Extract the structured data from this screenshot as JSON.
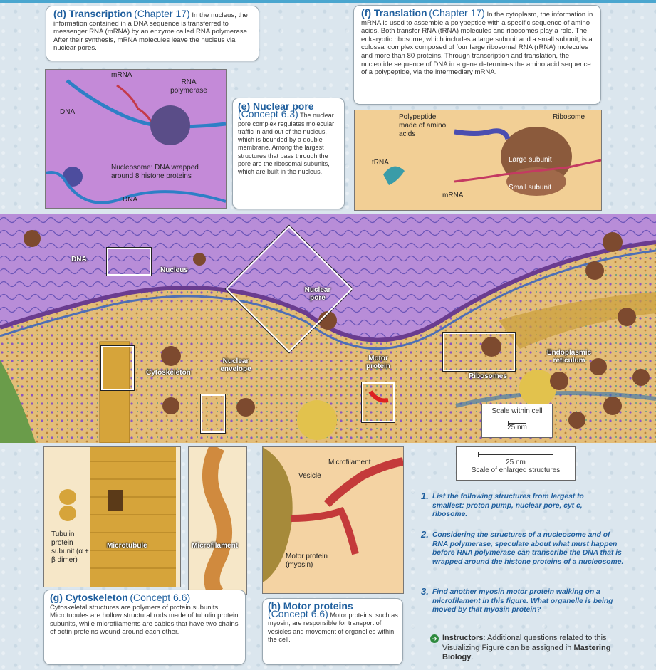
{
  "transcription": {
    "title": "(d) Transcription",
    "ref": "(Chapter 17)",
    "text": "In the nucleus, the information contained in a DNA sequence is transferred to messenger RNA (mRNA) by an enzyme called RNA polymerase. After their synthesis, mRNA molecules leave the nucleus via nuclear pores.",
    "labels": {
      "mrna": "mRNA",
      "rna_pol": "RNA polymerase",
      "dna1": "DNA",
      "nucleosome": "Nucleosome: DNA wrapped around 8 histone proteins",
      "dna2": "DNA"
    }
  },
  "translation": {
    "title": "(f) Translation",
    "ref": "(Chapter 17)",
    "text": "In the cytoplasm, the information in mRNA is used to assemble a polypeptide with a specific sequence of amino acids. Both transfer RNA (tRNA) molecules and ribosomes play a role. The eukaryotic ribosome, which includes a large subunit and a small subunit, is a colossal complex composed of four large ribosomal RNA (rRNA) molecules and more than 80 proteins. Through transcription and translation, the nucleotide sequence of DNA in a gene determines the amino acid sequence of a polypeptide, via the intermediary mRNA.",
    "labels": {
      "polypeptide": "Polypeptide made of amino acids",
      "ribosome": "Ribosome",
      "trna": "tRNA",
      "large": "Large subunit",
      "small": "Small subunit",
      "mrna": "mRNA"
    }
  },
  "nuclear_pore": {
    "title": "(e) Nuclear pore",
    "ref": "(Concept 6.3)",
    "text": "The nuclear pore complex regulates molecular traffic in and out of the nucleus, which is bounded by a double membrane. Among the largest structures that pass through the pore are the ribosomal subunits, which are built in the nucleus."
  },
  "cell_labels": {
    "dna": "DNA",
    "nucleus": "Nucleus",
    "nuclear_pore": "Nuclear pore",
    "nuclear_envelope": "Nuclear envelope",
    "motor_protein": "Motor protein",
    "cytoskeleton": "Cytoskeleton",
    "ribosomes": "Ribosomes",
    "er": "Endoplasmic reticulum"
  },
  "scale": {
    "within_title": "Scale within cell",
    "within_value": "25 nm",
    "enlarged_value": "25 nm",
    "enlarged_title": "Scale of enlarged structures"
  },
  "cytoskeleton_panel": {
    "tubulin": "Tubulin protein subunit (α + β dimer)",
    "microtubule": "Microtubule",
    "microfilament": "Microfilament"
  },
  "motor_panel": {
    "microfilament": "Microfilament",
    "vesicle": "Vesicle",
    "motor": "Motor protein (myosin)"
  },
  "cytoskeleton": {
    "title": "(g) Cytoskeleton",
    "ref": "(Concept 6.6)",
    "text": "Cytoskeletal structures are polymers of protein subunits. Microtubules are hollow structural rods made of tubulin protein subunits, while microfilaments are cables that have two chains of actin proteins wound around each other."
  },
  "motor_proteins": {
    "title": "(h) Motor proteins",
    "ref": "(Concept 6.6)",
    "text": "Motor proteins, such as myosin, are responsible for transport of vesicles and movement of organelles within the cell."
  },
  "questions": [
    {
      "num": "1.",
      "text": "List the following structures from largest to smallest: proton pump, nuclear pore, cyt c, ribosome."
    },
    {
      "num": "2.",
      "text": "Considering the structures of a nucleosome and of RNA polymerase, speculate about what must happen before RNA polymerase can transcribe the DNA that is wrapped around the histone proteins of a nucleosome."
    },
    {
      "num": "3.",
      "text": "Find another myosin motor protein walking on a microfilament in this figure. What organelle is being moved by that myosin protein?"
    }
  ],
  "instructors": {
    "label": "Instructors",
    "text": ": Additional questions related to this Visualizing Figure can be assigned in ",
    "link": "Mastering Biology",
    "end": "."
  },
  "colors": {
    "accent": "#1f5f9e",
    "nucleus": "#b78bd6",
    "cytoplasm": "#e7c37f"
  }
}
